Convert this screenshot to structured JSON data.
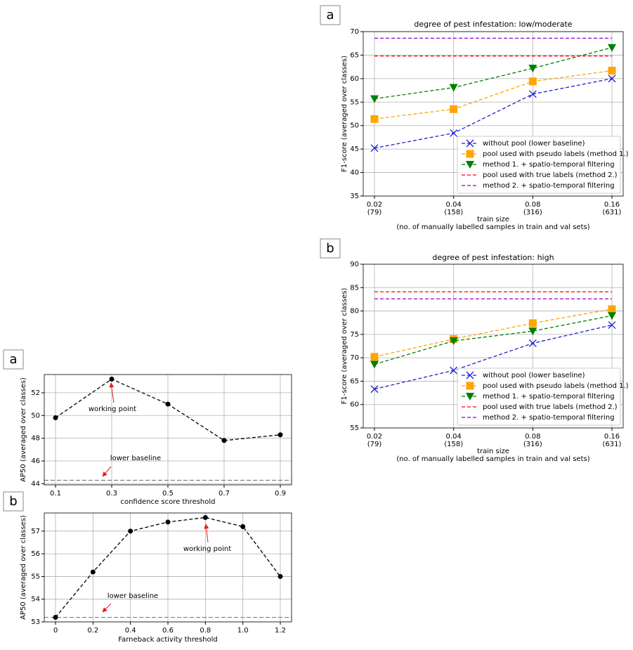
{
  "chart_data": [
    {
      "type": "line",
      "panel_label": "a",
      "title": "degree of pest infestation: low/moderate",
      "xlabel": "train size",
      "xlabel_note": "(no. of manually labelled samples in train and val sets)",
      "ylabel": "F1-score (averaged over classes)",
      "categories": [
        "0.02",
        "0.04",
        "0.08",
        "0.16"
      ],
      "category_sublabels": [
        "(79)",
        "(158)",
        "(316)",
        "(631)"
      ],
      "ylim": [
        35,
        70
      ],
      "yticks": [
        35,
        40,
        45,
        50,
        55,
        60,
        65,
        70
      ],
      "grid": true,
      "legend": "lower right",
      "series": [
        {
          "name": "without pool (lower baseline)",
          "color": "#1f1fd6",
          "marker": "x",
          "values": [
            45.2,
            48.4,
            56.7,
            60.0
          ]
        },
        {
          "name": "pool used with pseudo labels (method 1.)",
          "color": "#ffa500",
          "marker": "square",
          "values": [
            51.4,
            53.5,
            59.4,
            61.7
          ]
        },
        {
          "name": "method 1. + spatio-temporal filtering",
          "color": "#008000",
          "marker": "triangle-down",
          "values": [
            55.7,
            58.1,
            62.2,
            66.6
          ]
        },
        {
          "name": "pool used with true labels (method 2.)",
          "color": "#ff0000",
          "marker": "none",
          "values": [
            64.8,
            64.8,
            64.8,
            64.8
          ]
        },
        {
          "name": "method 2. + spatio-temporal filtering",
          "color": "#9400d3",
          "marker": "none",
          "values": [
            68.6,
            68.6,
            68.6,
            68.6
          ]
        }
      ]
    },
    {
      "type": "line",
      "panel_label": "b",
      "title": "degree of pest infestation: high",
      "xlabel": "train size",
      "xlabel_note": "(no. of manually labelled samples in train and val sets)",
      "ylabel": "F1-score (averaged over classes)",
      "categories": [
        "0.02",
        "0.04",
        "0.08",
        "0.16"
      ],
      "category_sublabels": [
        "(79)",
        "(158)",
        "(316)",
        "(631)"
      ],
      "ylim": [
        55,
        90
      ],
      "yticks": [
        55,
        60,
        65,
        70,
        75,
        80,
        85,
        90
      ],
      "grid": true,
      "legend": "lower right",
      "series": [
        {
          "name": "without pool (lower baseline)",
          "color": "#1f1fd6",
          "marker": "x",
          "values": [
            63.3,
            67.3,
            73.1,
            77.0
          ]
        },
        {
          "name": "pool used with pseudo labels (method 1.)",
          "color": "#ffa500",
          "marker": "square",
          "values": [
            70.2,
            74.0,
            77.4,
            80.4
          ]
        },
        {
          "name": "method 1. + spatio-temporal filtering",
          "color": "#008000",
          "marker": "triangle-down",
          "values": [
            68.6,
            73.6,
            75.7,
            79.0
          ]
        },
        {
          "name": "pool used with true labels (method 2.)",
          "color": "#ff0000",
          "marker": "none",
          "values": [
            84.1,
            84.1,
            84.1,
            84.1
          ]
        },
        {
          "name": "method 2. + spatio-temporal filtering",
          "color": "#9400d3",
          "marker": "none",
          "values": [
            82.6,
            82.6,
            82.6,
            82.6
          ]
        }
      ]
    },
    {
      "type": "line",
      "panel_label": "a",
      "xlabel": "confidence score threshold",
      "ylabel": "AP50 (averaged over classes)",
      "x": [
        0.1,
        0.3,
        0.5,
        0.7,
        0.9
      ],
      "xlim": [
        0.06,
        0.94
      ],
      "xticks": [
        0.1,
        0.3,
        0.5,
        0.7,
        0.9
      ],
      "ylim": [
        43.9,
        53.6
      ],
      "yticks": [
        44,
        46,
        48,
        50,
        52
      ],
      "grid": true,
      "series": [
        {
          "color": "#000000",
          "marker": "circle",
          "values": [
            49.8,
            53.2,
            51.0,
            47.8,
            48.3
          ]
        }
      ],
      "baseline": 44.3,
      "baseline_color": "#808080",
      "annotations": [
        "working point",
        "lower baseline"
      ]
    },
    {
      "type": "line",
      "panel_label": "b",
      "xlabel": "Farneback activity threshold",
      "ylabel": "AP50 (averaged over classes)",
      "x": [
        0,
        0.2,
        0.4,
        0.6,
        0.8,
        1.0,
        1.2
      ],
      "xlim": [
        -0.06,
        1.26
      ],
      "xticks": [
        0,
        0.2,
        0.4,
        0.6,
        0.8,
        {
          "value": 1.0,
          "label": "1.0"
        },
        1.2
      ],
      "ylim": [
        53.0,
        57.8
      ],
      "yticks": [
        53,
        54,
        55,
        56,
        57
      ],
      "grid": true,
      "series": [
        {
          "color": "#000000",
          "marker": "circle",
          "values": [
            53.2,
            55.2,
            57.0,
            57.4,
            57.6,
            57.2,
            55.0
          ]
        }
      ],
      "baseline": 53.2,
      "baseline_color": "#808080",
      "annotations": [
        "working point",
        "lower baseline"
      ]
    }
  ]
}
